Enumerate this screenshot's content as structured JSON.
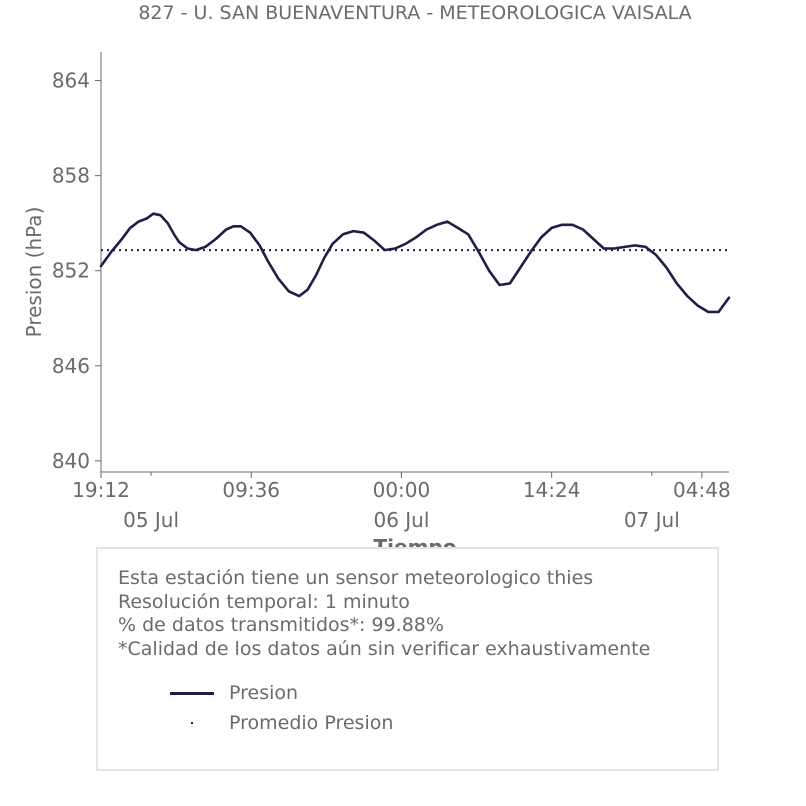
{
  "chart_data": {
    "type": "line",
    "title": "827 - U. SAN BUENAVENTURA - METEOROLOGICA VAISALA",
    "xlabel": "Tiempo",
    "ylabel": "Presion (hPa)",
    "ylim": [
      839.3,
      865.8
    ],
    "yticks": [
      "864",
      "858",
      "852",
      "846",
      "840"
    ],
    "ytick_values": [
      864,
      858,
      852,
      846,
      840
    ],
    "xlim_hours": [
      0,
      60.2
    ],
    "xticks": [
      {
        "label": "19:12",
        "hour": 0
      },
      {
        "label": "09:36",
        "hour": 14.4
      },
      {
        "label": "00:00",
        "hour": 28.8
      },
      {
        "label": "14:24",
        "hour": 43.2
      },
      {
        "label": "04:48",
        "hour": 57.6
      }
    ],
    "date_ticks": [
      {
        "label": "05 Jul",
        "hour": 4.8
      },
      {
        "label": "06 Jul",
        "hour": 28.8
      },
      {
        "label": "07 Jul",
        "hour": 52.8
      }
    ],
    "series": [
      {
        "name": "Presion",
        "color": "#1e1f45",
        "style": "solid",
        "x_hours": [
          0,
          1.0,
          2.0,
          2.8,
          3.6,
          4.4,
          5.0,
          5.7,
          6.4,
          7.0,
          7.5,
          8.3,
          9.1,
          10.0,
          11.0,
          12.0,
          12.7,
          13.4,
          14.3,
          15.2,
          16.0,
          17.0,
          18.0,
          19.0,
          19.8,
          20.6,
          21.4,
          22.2,
          23.2,
          24.2,
          25.2,
          26.2,
          27.2,
          28.2,
          29.2,
          30.2,
          31.2,
          32.2,
          33.2,
          34.2,
          35.2,
          36.2,
          37.2,
          38.2,
          39.2,
          40.2,
          41.2,
          42.2,
          43.2,
          44.2,
          45.2,
          46.2,
          47.2,
          48.2,
          49.2,
          50.2,
          51.2,
          52.2,
          53.2,
          54.2,
          55.2,
          56.2,
          57.2,
          58.2,
          59.2,
          60.2
        ],
        "values": [
          852.3,
          853.2,
          854.0,
          854.7,
          855.1,
          855.3,
          855.6,
          855.5,
          855.0,
          854.3,
          853.8,
          853.4,
          853.3,
          853.5,
          854.0,
          854.6,
          854.8,
          854.8,
          854.4,
          853.6,
          852.6,
          851.5,
          850.7,
          850.4,
          850.8,
          851.7,
          852.8,
          853.7,
          854.3,
          854.5,
          854.4,
          853.9,
          853.3,
          853.4,
          853.7,
          854.1,
          854.6,
          854.9,
          855.1,
          854.7,
          854.3,
          853.2,
          852.0,
          851.1,
          851.2,
          852.2,
          853.2,
          854.1,
          854.7,
          854.9,
          854.9,
          854.6,
          854.0,
          853.4,
          853.4,
          853.5,
          853.6,
          853.5,
          853.0,
          852.2,
          851.2,
          850.4,
          849.8,
          849.4,
          849.4,
          850.3
        ]
      },
      {
        "name": "Promedio Presion",
        "color": "#1e1f45",
        "style": "dotted",
        "value": 853.3
      }
    ]
  },
  "info": {
    "line1": "Esta estación tiene un sensor meteorologico thies",
    "line2": "Resolución temporal: 1 minuto",
    "line3": "% de datos transmitidos*: 99.88%",
    "line4": "*Calidad de los datos aún sin verificar exhaustivamente"
  },
  "legend": {
    "series_label": "Presion",
    "mean_label": "Promedio Presion"
  },
  "colors": {
    "line": "#1e1f45",
    "text": "#6b6b6b",
    "axis": "#6b6b6b",
    "box_border": "#e4e4e4"
  }
}
